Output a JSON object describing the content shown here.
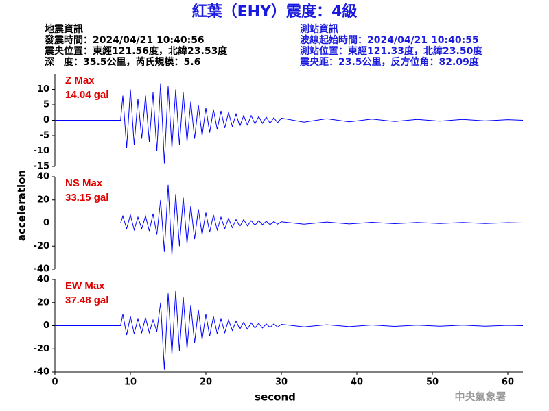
{
  "header": {
    "title": "紅葉（EHY）震度：4級",
    "left_lines": [
      "地震資訊",
      "發震時間：2024/04/21 10:40:56",
      "震央位置：東經121.56度，北緯23.53度",
      "深　度：35.5公里，芮氏規模：5.6"
    ],
    "right_lines": [
      "測站資訊",
      "波線起始時間：2024/04/21 10:40:55",
      "測站位置：東經121.33度，北緯23.50度",
      "震央距：23.5公里，反方位角：82.09度"
    ],
    "watermark": "中央氣象署"
  },
  "chart_data": [
    {
      "type": "line",
      "annotation": [
        "Z Max",
        "14.04 gal"
      ],
      "xlim": [
        0,
        62
      ],
      "ylim": [
        -15,
        15
      ],
      "yticks": [
        -15,
        -10,
        -5,
        0,
        5,
        10
      ],
      "x": [
        0,
        8.7,
        9,
        9.5,
        10,
        10.5,
        11,
        11.5,
        12,
        12.5,
        13,
        13.5,
        14,
        14.5,
        15,
        15.5,
        16,
        16.5,
        17,
        17.5,
        18,
        18.5,
        19,
        19.5,
        20,
        20.5,
        21,
        21.5,
        22,
        22.5,
        23,
        23.5,
        24,
        24.5,
        25,
        25.5,
        26,
        26.5,
        27,
        27.5,
        28,
        28.5,
        29,
        29.5,
        30,
        33,
        36,
        39,
        42,
        45,
        48,
        51,
        54,
        57,
        60,
        62
      ],
      "series": [
        {
          "color": "#0000ff",
          "values": [
            0,
            0,
            8,
            -9,
            10,
            -8,
            7,
            -6,
            8,
            -7,
            9,
            -10,
            12,
            -14,
            11,
            -9,
            10,
            -8,
            9,
            -7,
            6,
            -6,
            5,
            -5,
            4,
            -4,
            3.5,
            -3,
            3,
            -2.5,
            2.5,
            -2,
            2,
            -2,
            1.5,
            -1.5,
            1.5,
            -1.2,
            1.2,
            -1,
            1,
            -1,
            0.8,
            -0.8,
            0.7,
            -0.6,
            0.5,
            -0.5,
            0.4,
            -0.4,
            0.3,
            -0.3,
            0.3,
            -0.2,
            0.2,
            0
          ]
        }
      ]
    },
    {
      "type": "line",
      "annotation": [
        "NS Max",
        "33.15 gal"
      ],
      "y_label": "acceleration",
      "xlim": [
        0,
        62
      ],
      "ylim": [
        -40,
        40
      ],
      "yticks": [
        -40,
        -20,
        0,
        20,
        40
      ],
      "x": [
        0,
        8.7,
        9,
        9.5,
        10,
        10.5,
        11,
        11.5,
        12,
        12.5,
        13,
        13.5,
        14,
        14.5,
        15,
        15.5,
        16,
        16.5,
        17,
        17.5,
        18,
        18.5,
        19,
        19.5,
        20,
        20.5,
        21,
        21.5,
        22,
        22.5,
        23,
        23.5,
        24,
        24.5,
        25,
        25.5,
        26,
        26.5,
        27,
        27.5,
        28,
        28.5,
        29,
        29.5,
        30,
        33,
        36,
        39,
        42,
        45,
        48,
        51,
        54,
        57,
        60,
        62
      ],
      "series": [
        {
          "color": "#0000ff",
          "values": [
            0,
            0,
            6,
            -5,
            7,
            -6,
            5,
            -5,
            6,
            -7,
            8,
            -10,
            20,
            -25,
            33,
            -28,
            25,
            -20,
            22,
            -18,
            15,
            -14,
            12,
            -10,
            9,
            -8,
            7,
            -6,
            5,
            -5,
            4,
            -4,
            3,
            -3,
            3,
            -2.5,
            2,
            -2,
            2,
            -1.5,
            1.5,
            -1.5,
            1.2,
            -1,
            1,
            -1,
            0.8,
            -0.8,
            0.6,
            -0.6,
            0.5,
            -0.5,
            0.4,
            -0.4,
            0.3,
            0
          ]
        }
      ]
    },
    {
      "type": "line",
      "annotation": [
        "EW Max",
        "37.48 gal"
      ],
      "x_label": "second",
      "xlim": [
        0,
        62
      ],
      "xticks": [
        0,
        10,
        20,
        30,
        40,
        50,
        60
      ],
      "ylim": [
        -40,
        40
      ],
      "yticks": [
        -40,
        -20,
        0,
        20,
        40
      ],
      "x": [
        0,
        8.7,
        9,
        9.5,
        10,
        10.5,
        11,
        11.5,
        12,
        12.5,
        13,
        13.5,
        14,
        14.5,
        15,
        15.5,
        16,
        16.5,
        17,
        17.5,
        18,
        18.5,
        19,
        19.5,
        20,
        20.5,
        21,
        21.5,
        22,
        22.5,
        23,
        23.5,
        24,
        24.5,
        25,
        25.5,
        26,
        26.5,
        27,
        27.5,
        28,
        28.5,
        29,
        29.5,
        30,
        33,
        36,
        39,
        42,
        45,
        48,
        51,
        54,
        57,
        60,
        62
      ],
      "series": [
        {
          "color": "#0000ff",
          "values": [
            0,
            0,
            10,
            -8,
            8,
            -7,
            6,
            -6,
            7,
            -6,
            5,
            -5,
            20,
            -38,
            28,
            -25,
            30,
            -22,
            25,
            -20,
            18,
            -15,
            14,
            -12,
            10,
            -9,
            8,
            -7,
            6,
            -6,
            5,
            -4,
            4,
            -3,
            3,
            -3,
            2.5,
            -2,
            2,
            -2,
            1.5,
            -1.5,
            1.5,
            -1.2,
            1.2,
            -1,
            0.8,
            -0.8,
            0.6,
            -0.6,
            0.5,
            -0.5,
            0.4,
            -0.4,
            0.3,
            0
          ]
        }
      ]
    }
  ]
}
